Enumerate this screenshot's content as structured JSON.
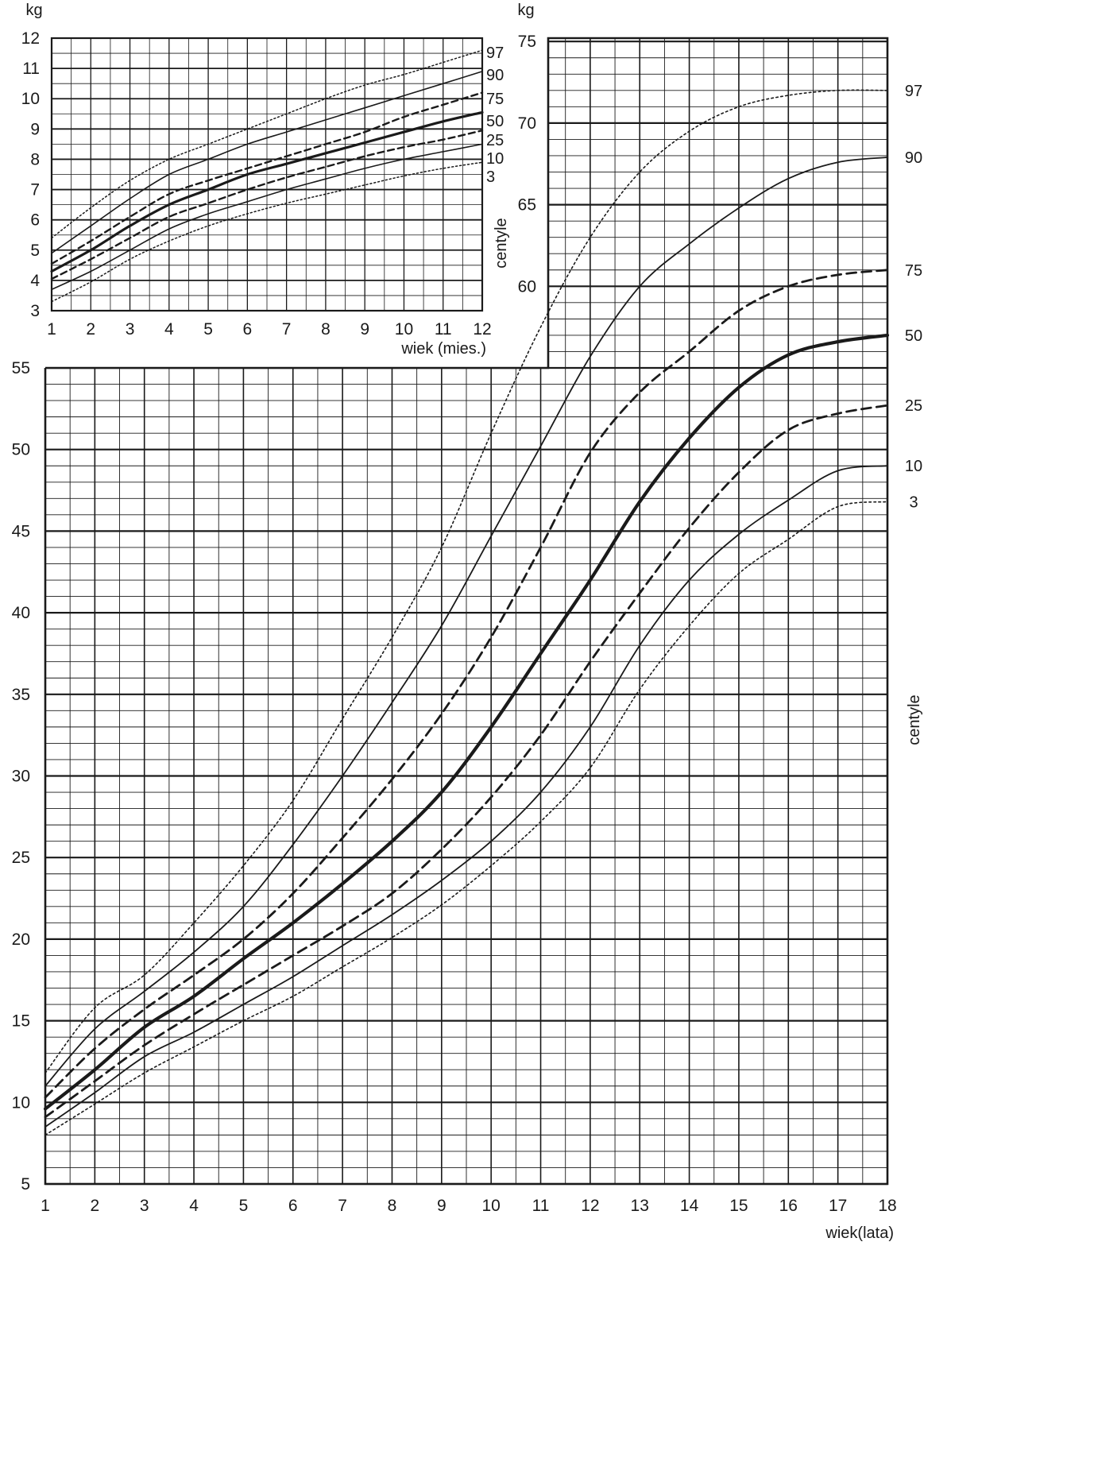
{
  "chart_data": [
    {
      "id": "years",
      "type": "line",
      "title": "",
      "ylabel": "kg",
      "ylabel_upper": "kg",
      "xlabel": "wiek(lata)",
      "side_label": "centyle",
      "xlim": [
        1,
        18
      ],
      "ylim": [
        5,
        75
      ],
      "y_axis_left_range": [
        5,
        55
      ],
      "y_axis_right_range": [
        55,
        75
      ],
      "x_ticks": [
        1,
        2,
        3,
        4,
        5,
        6,
        7,
        8,
        9,
        10,
        11,
        12,
        13,
        14,
        15,
        16,
        17,
        18
      ],
      "y_ticks_left": [
        5,
        10,
        15,
        20,
        25,
        30,
        35,
        40,
        45,
        50,
        55
      ],
      "y_ticks_right": [
        60,
        65,
        70,
        75
      ],
      "grid": true,
      "x": [
        1,
        2,
        3,
        4,
        5,
        6,
        7,
        8,
        9,
        10,
        11,
        12,
        13,
        14,
        15,
        16,
        17,
        18
      ],
      "series": [
        {
          "name": "97",
          "style": "dotted",
          "values": [
            11.8,
            15.8,
            17.8,
            21,
            24.5,
            28.5,
            33.5,
            38.5,
            44,
            51,
            57.5,
            63,
            67,
            69.5,
            71,
            71.7,
            72,
            72
          ]
        },
        {
          "name": "90",
          "style": "solid",
          "values": [
            11,
            14.5,
            16.8,
            19.2,
            22,
            25.8,
            30,
            34.5,
            39.2,
            44.7,
            50.2,
            55.7,
            60,
            62.6,
            64.8,
            66.6,
            67.6,
            67.9
          ]
        },
        {
          "name": "75",
          "style": "dashed",
          "values": [
            10.3,
            13.3,
            15.7,
            17.8,
            20,
            22.8,
            26.2,
            29.8,
            33.8,
            38.5,
            44,
            49.8,
            53.5,
            56,
            58.5,
            60,
            60.7,
            61
          ]
        },
        {
          "name": "50",
          "style": "bold",
          "values": [
            9.6,
            12,
            14.6,
            16.5,
            18.8,
            21,
            23.4,
            26,
            29,
            33,
            37.5,
            42,
            46.8,
            50.7,
            53.8,
            55.8,
            56.6,
            57
          ]
        },
        {
          "name": "25",
          "style": "dashed",
          "values": [
            9.1,
            11.3,
            13.5,
            15.4,
            17.2,
            19,
            20.8,
            22.8,
            25.5,
            28.7,
            32.5,
            37,
            41.2,
            45.2,
            48.6,
            51.2,
            52.2,
            52.7
          ]
        },
        {
          "name": "10",
          "style": "solid",
          "values": [
            8.5,
            10.6,
            12.8,
            14.3,
            16,
            17.7,
            19.6,
            21.5,
            23.6,
            26,
            29,
            33,
            38,
            42,
            44.8,
            46.9,
            48.7,
            49
          ]
        },
        {
          "name": "3",
          "style": "dotted",
          "values": [
            8,
            9.9,
            11.8,
            13.4,
            15,
            16.5,
            18.3,
            20.1,
            22.1,
            24.5,
            27.2,
            30.5,
            35.3,
            39.2,
            42.4,
            44.5,
            46.5,
            46.8
          ]
        }
      ]
    },
    {
      "id": "months",
      "type": "line",
      "title": "",
      "ylabel": "kg",
      "xlabel": "wiek (mies.)",
      "side_label": "centyle",
      "xlim": [
        1,
        12
      ],
      "ylim": [
        3,
        12
      ],
      "x_ticks": [
        1,
        2,
        3,
        4,
        5,
        6,
        7,
        8,
        9,
        10,
        11,
        12
      ],
      "y_ticks": [
        3,
        4,
        5,
        6,
        7,
        8,
        9,
        10,
        11,
        12
      ],
      "grid": true,
      "x": [
        1,
        2,
        3,
        4,
        5,
        6,
        7,
        8,
        9,
        10,
        11,
        12
      ],
      "series": [
        {
          "name": "97",
          "style": "dotted",
          "values": [
            5.4,
            6.4,
            7.3,
            8,
            8.5,
            9,
            9.5,
            10,
            10.45,
            10.8,
            11.2,
            11.6
          ]
        },
        {
          "name": "90",
          "style": "solid",
          "values": [
            4.9,
            5.8,
            6.7,
            7.5,
            8,
            8.5,
            8.9,
            9.3,
            9.7,
            10.1,
            10.5,
            10.9
          ]
        },
        {
          "name": "75",
          "style": "dashed",
          "values": [
            4.55,
            5.3,
            6.1,
            6.85,
            7.3,
            7.7,
            8.1,
            8.5,
            8.9,
            9.4,
            9.8,
            10.2
          ]
        },
        {
          "name": "50",
          "style": "bold",
          "values": [
            4.3,
            5,
            5.8,
            6.5,
            7,
            7.5,
            7.85,
            8.2,
            8.55,
            8.9,
            9.25,
            9.55
          ]
        },
        {
          "name": "25",
          "style": "dashed",
          "values": [
            4.05,
            4.7,
            5.4,
            6.1,
            6.55,
            7,
            7.4,
            7.75,
            8.1,
            8.4,
            8.65,
            8.95
          ]
        },
        {
          "name": "10",
          "style": "solid",
          "values": [
            3.7,
            4.3,
            5,
            5.7,
            6.2,
            6.6,
            7,
            7.35,
            7.7,
            8,
            8.25,
            8.5
          ]
        },
        {
          "name": "3",
          "style": "dotted",
          "values": [
            3.3,
            3.95,
            4.7,
            5.3,
            5.8,
            6.2,
            6.55,
            6.85,
            7.15,
            7.45,
            7.7,
            7.9
          ]
        }
      ]
    }
  ]
}
